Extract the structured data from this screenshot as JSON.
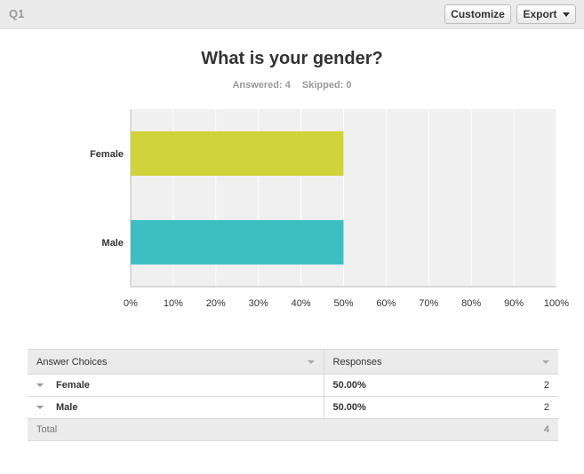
{
  "question": {
    "number": "Q1",
    "title": "What is your gender?",
    "answered": "Answered: 4",
    "skipped": "Skipped: 0"
  },
  "toolbar": {
    "customize_label": "Customize",
    "export_label": "Export"
  },
  "chart_data": {
    "type": "bar",
    "orientation": "horizontal",
    "categories": [
      "Female",
      "Male"
    ],
    "values": [
      50,
      50
    ],
    "colors": [
      "#d1d33b",
      "#3dbfc1"
    ],
    "xlim": [
      0,
      100
    ],
    "xticks": [
      "0%",
      "10%",
      "20%",
      "30%",
      "40%",
      "50%",
      "60%",
      "70%",
      "80%",
      "90%",
      "100%"
    ],
    "grid": true
  },
  "table": {
    "headers": [
      "Answer Choices",
      "Responses"
    ],
    "rows": [
      {
        "choice": "Female",
        "percent": "50.00%",
        "count": "2"
      },
      {
        "choice": "Male",
        "percent": "50.00%",
        "count": "2"
      }
    ],
    "total_label": "Total",
    "total_count": "4"
  }
}
